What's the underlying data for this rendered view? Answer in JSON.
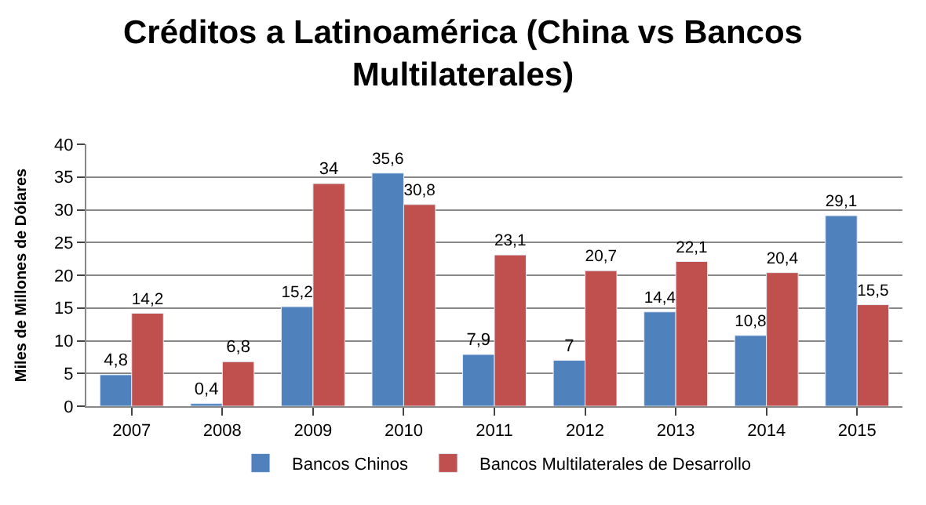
{
  "chart_data": {
    "type": "bar",
    "title": "Créditos a Latinoamérica (China vs Bancos Multilaterales)",
    "ylabel": "Miles de Millones de Dólares",
    "categories": [
      "2007",
      "2008",
      "2009",
      "2010",
      "2011",
      "2012",
      "2013",
      "2014",
      "2015"
    ],
    "series": [
      {
        "name": "Bancos Chinos",
        "color": "#4f81bd",
        "values": [
          4.8,
          0.4,
          15.2,
          35.6,
          7.9,
          7,
          14.4,
          10.8,
          29.1
        ],
        "value_labels": [
          "4,8",
          "0,4",
          "15,2",
          "35,6",
          "7,9",
          "7",
          "14,4",
          "10,8",
          "29,1"
        ]
      },
      {
        "name": "Bancos Multilaterales de Desarrollo",
        "color": "#c0504d",
        "values": [
          14.2,
          6.8,
          34,
          30.8,
          23.1,
          20.7,
          22.1,
          20.4,
          15.5
        ],
        "value_labels": [
          "14,2",
          "6,8",
          "34",
          "30,8",
          "23,1",
          "20,7",
          "22,1",
          "20,4",
          "15,5"
        ]
      }
    ],
    "ylim": [
      0,
      40
    ],
    "yticks": [
      0,
      5,
      10,
      15,
      20,
      25,
      30,
      35,
      40
    ],
    "grid": "y",
    "legend": "bottom"
  }
}
